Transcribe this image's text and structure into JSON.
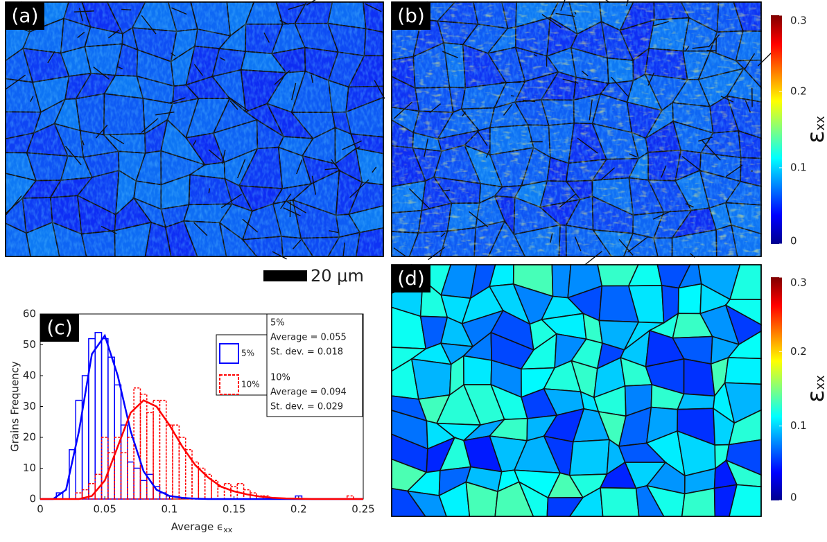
{
  "panel_labels": [
    "(a)",
    "(b)",
    "(c)",
    "(d)"
  ],
  "scale_bar": "20 μm",
  "colorbar": {
    "lim": [
      0,
      0.3
    ],
    "ticks": [
      0,
      0.1,
      0.2,
      0.3
    ],
    "label": "ε",
    "label_sub": "xx"
  },
  "chart_data": {
    "type": "histogram",
    "y_label": "Grains Frequency",
    "x_label": "Average ϵ",
    "x_label_sub": "xx",
    "xlim": [
      0,
      0.25
    ],
    "xticks": [
      0,
      0.05,
      0.1,
      0.15,
      0.2,
      0.25
    ],
    "ylim": [
      0,
      60
    ],
    "yticks": [
      0,
      10,
      20,
      30,
      40,
      50,
      60
    ],
    "series": [
      {
        "name": "5%",
        "color": "#0000ff",
        "dashed": false,
        "bins": [
          0.0125,
          0.0175,
          0.0225,
          0.0275,
          0.0325,
          0.0375,
          0.0425,
          0.0475,
          0.0525,
          0.0575,
          0.0625,
          0.0675,
          0.0725,
          0.0775,
          0.0825,
          0.0875,
          0.0925,
          0.0975,
          0.1025,
          0.1075,
          0.1125,
          0.1175,
          0.1225,
          0.1275,
          0.1325,
          0.1375,
          0.1425,
          0.1475,
          0.1525,
          0.1575,
          0.1625,
          0.1675,
          0.1725,
          0.1775,
          0.1825,
          0.1875,
          0.1925,
          0.1975,
          0.2025
        ],
        "values": [
          2,
          0,
          16,
          32,
          40,
          52,
          54,
          52,
          46,
          37,
          24,
          12,
          10,
          6,
          8,
          4,
          2,
          1,
          0,
          0,
          0,
          0,
          0,
          0,
          0,
          0,
          0,
          0,
          0,
          0,
          0,
          0,
          0,
          0,
          0,
          0,
          0,
          1
        ]
      },
      {
        "name": "10%",
        "color": "#ff0000",
        "dashed": true,
        "bins": [
          0.0125,
          0.0175,
          0.0225,
          0.0275,
          0.0325,
          0.0375,
          0.0425,
          0.0475,
          0.0525,
          0.0575,
          0.0625,
          0.0675,
          0.0725,
          0.0775,
          0.0825,
          0.0875,
          0.0925,
          0.0975,
          0.1025,
          0.1075,
          0.1125,
          0.1175,
          0.1225,
          0.1275,
          0.1325,
          0.1375,
          0.1425,
          0.1475,
          0.1525,
          0.1575,
          0.1625,
          0.1675,
          0.1725,
          0.1775,
          0.1825,
          0.1875,
          0.1925,
          0.1975,
          0.2025,
          0.2075,
          0.2125,
          0.2175,
          0.2225,
          0.2275,
          0.2325,
          0.2375,
          0.2425
        ],
        "values": [
          0,
          0,
          0,
          2,
          3,
          5,
          8,
          20,
          15,
          20,
          15,
          20,
          36,
          34,
          28,
          32,
          32,
          24,
          24,
          20,
          16,
          12,
          10,
          8,
          6,
          4,
          5,
          4,
          5,
          3,
          2,
          1,
          1,
          0,
          0,
          0,
          0,
          0,
          0,
          0,
          0,
          0,
          0,
          0,
          0,
          1
        ]
      }
    ],
    "fit": {
      "x": [
        0,
        0.01,
        0.02,
        0.03,
        0.04,
        0.05,
        0.06,
        0.07,
        0.08,
        0.09,
        0.1,
        0.11,
        0.12,
        0.13,
        0.14,
        0.15,
        0.16,
        0.17,
        0.18,
        0.19,
        0.2,
        0.21,
        0.22,
        0.23,
        0.24,
        0.25
      ],
      "series": [
        {
          "color": "#0000ff",
          "values": [
            0,
            0,
            3,
            22,
            47,
            53,
            40,
            22,
            9,
            3,
            1,
            0.4,
            0.1,
            0,
            0,
            0,
            0,
            0,
            0,
            0,
            0,
            0,
            0,
            0,
            0,
            0
          ]
        },
        {
          "color": "#ff0000",
          "values": [
            0,
            0,
            0,
            0,
            1,
            6,
            17,
            28,
            32,
            30,
            24,
            17,
            11,
            7,
            4,
            2.5,
            1.5,
            0.8,
            0.4,
            0.2,
            0.1,
            0,
            0,
            0,
            0,
            0
          ]
        }
      ]
    },
    "annotations": [
      "5%",
      "Average = 0.055",
      "St. dev. = 0.018",
      "10%",
      "Average = 0.094",
      "St. dev. = 0.029"
    ]
  }
}
